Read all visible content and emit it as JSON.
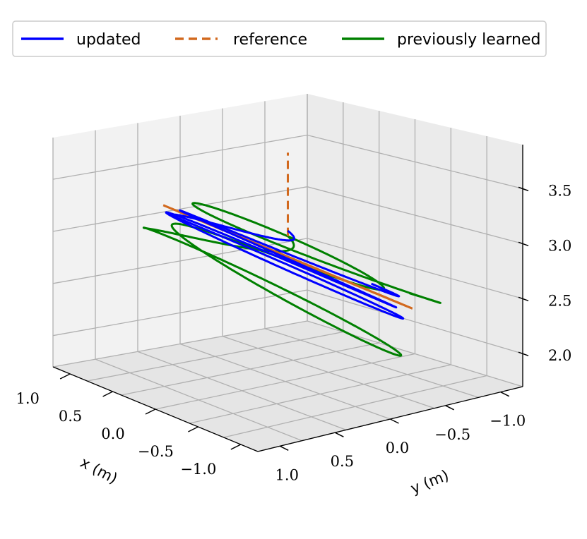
{
  "chart_data": {
    "type": "line",
    "projection": "3d",
    "title": "",
    "xlabel": "x (m)",
    "ylabel": "y (m)",
    "zlabel": "",
    "xlim": [
      -1.2,
      1.2
    ],
    "ylim": [
      -1.2,
      1.2
    ],
    "zlim": [
      1.7,
      3.9
    ],
    "x_ticks": [
      "1.0",
      "0.5",
      "0.0",
      "−0.5",
      "−1.0"
    ],
    "y_ticks": [
      "1.0",
      "0.5",
      "0.0",
      "−0.5",
      "−1.0"
    ],
    "z_ticks": [
      "2.0",
      "2.5",
      "3.0",
      "3.5"
    ],
    "grid": true,
    "legend": {
      "placement": "top",
      "entries": [
        {
          "name": "updated",
          "color": "#0000ff",
          "style": "solid"
        },
        {
          "name": "reference",
          "color": "#d2691e",
          "style": "dashed"
        },
        {
          "name": "previously learned",
          "color": "#008000",
          "style": "solid"
        }
      ]
    },
    "series": [
      {
        "name": "reference",
        "color": "#d2691e",
        "description": "circle of radius 1.0 m centred at (0, 0) in a plane tilted ~35 deg about x; center height ~2.85 m; plus a dashed vertical takeoff segment at (0, 0) from z 3.05 to 3.85",
        "circle": {
          "center": [
            0,
            0,
            2.85
          ],
          "radius": 1.0,
          "tilt_deg": 35
        },
        "takeoff": [
          [
            0,
            0,
            3.05
          ],
          [
            0,
            0,
            3.85
          ]
        ]
      },
      {
        "name": "updated",
        "color": "#0000ff",
        "description": "quadrotor trajectory converging onto the reference circle, ~3 laps",
        "laps": 3,
        "radius_range": [
          0.86,
          0.98
        ]
      },
      {
        "name": "previously learned",
        "color": "#008000",
        "description": "quadrotor trajectory with larger deviations, ~3 laps, drifting below reference",
        "laps": 3,
        "radius_range": [
          0.75,
          1.1
        ]
      }
    ]
  }
}
